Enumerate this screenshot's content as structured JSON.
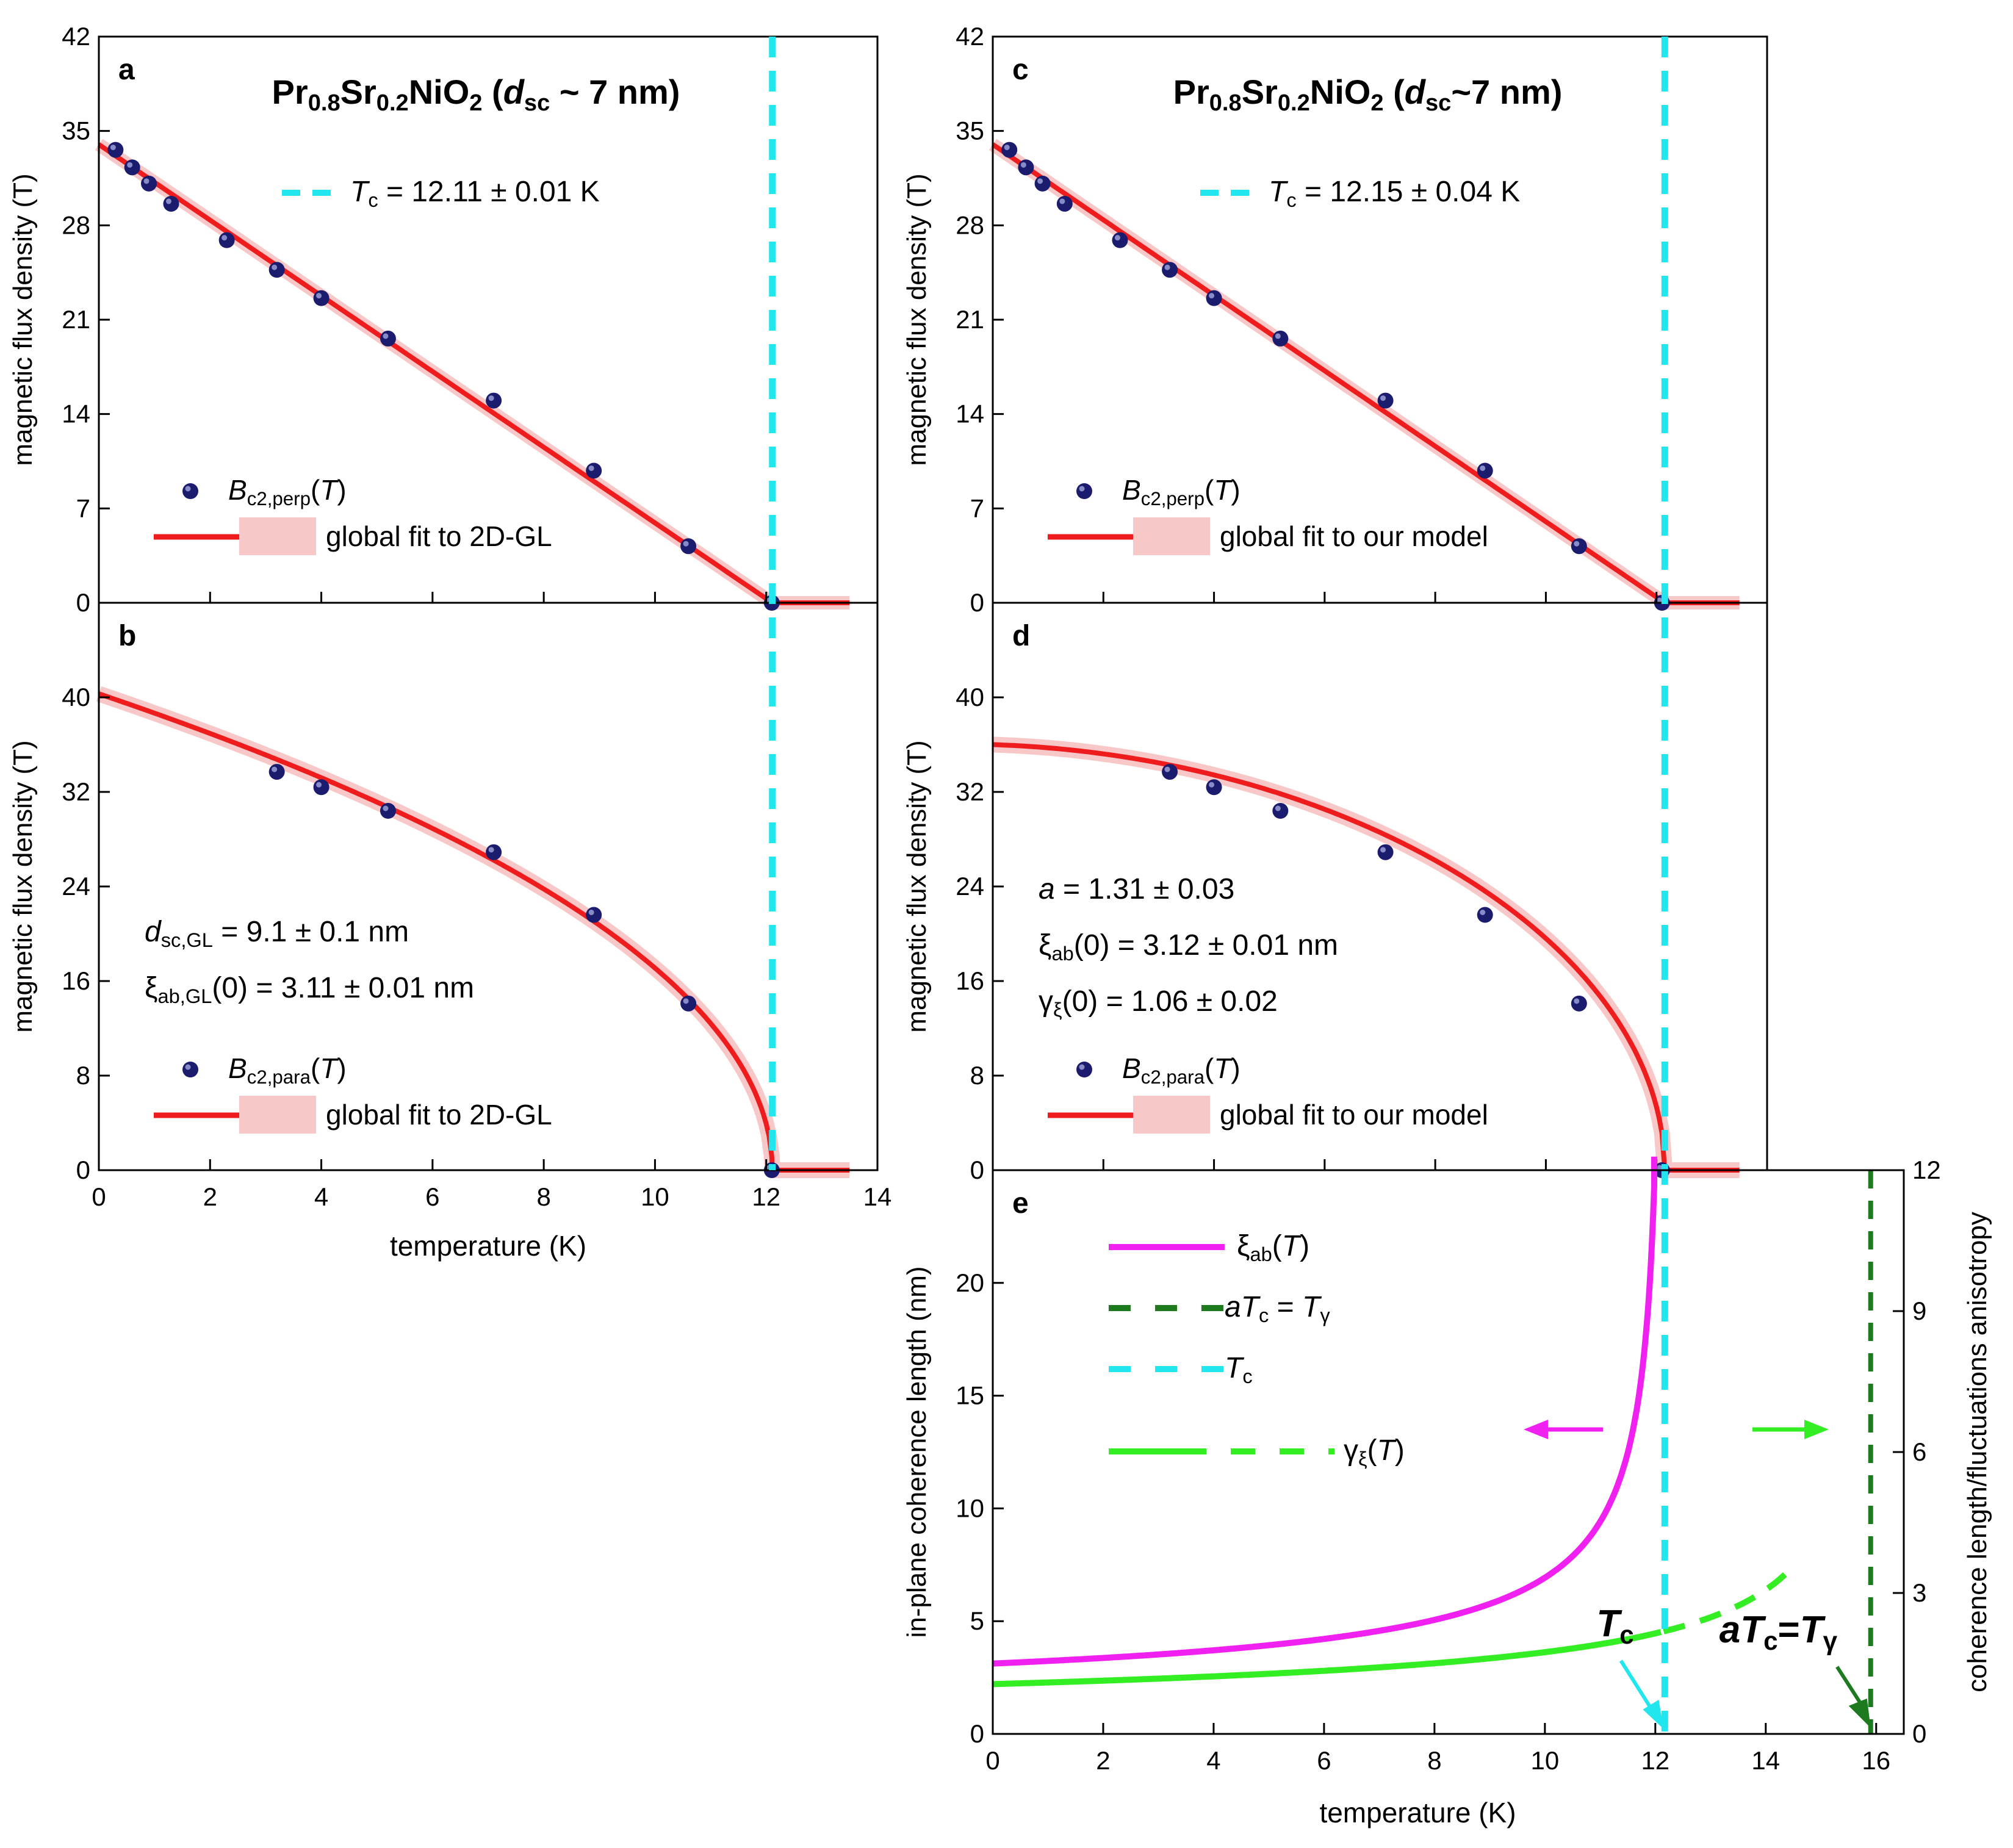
{
  "chart_data": [
    {
      "id": "a",
      "type": "scatter",
      "panel_label": "a",
      "title": "Pr0.8Sr0.2NiO2 (dsc ~ 7 nm)",
      "title_parts": [
        "Pr",
        "0.8",
        "Sr",
        "0.2",
        "NiO",
        "2",
        " (",
        "d",
        "sc",
        " ~ 7 nm)"
      ],
      "xlabel": "temperature (K)",
      "ylabel": "magnetic flux density (T)",
      "xlim": [
        0,
        14
      ],
      "ylim": [
        0,
        42
      ],
      "xticks": [
        "0",
        "2",
        "4",
        "6",
        "8",
        "10",
        "12",
        "14"
      ],
      "yticks": [
        "0",
        "7",
        "14",
        "21",
        "28",
        "35",
        "42"
      ],
      "annotation": [
        "T",
        "c",
        " = 12.11 ± 0.01 K"
      ],
      "legend": [
        [
          "B",
          "c2,perp",
          "(",
          "T",
          ")"
        ],
        "global fit to 2D-GL"
      ],
      "series": [
        {
          "name": "Bc2,perp(T)",
          "kind": "points",
          "x": [
            0.3,
            0.6,
            0.9,
            1.3,
            2.3,
            3.2,
            4.0,
            5.2,
            7.1,
            8.9,
            10.6,
            12.1
          ],
          "y": [
            33.6,
            32.3,
            31.1,
            29.6,
            26.9,
            24.7,
            22.6,
            19.6,
            15.0,
            9.8,
            4.2,
            0.0
          ]
        },
        {
          "name": "global fit to 2D-GL",
          "kind": "fit",
          "model": "perp",
          "x_end": 13.5
        },
        {
          "name": "Tc",
          "kind": "vline",
          "x": 12.11
        }
      ]
    },
    {
      "id": "b",
      "type": "scatter",
      "panel_label": "b",
      "xlabel": "temperature (K)",
      "ylabel": "magnetic flux density (T)",
      "xlim": [
        0,
        14
      ],
      "ylim": [
        0,
        48
      ],
      "xticks": [
        "0",
        "2",
        "4",
        "6",
        "8",
        "10",
        "12",
        "14"
      ],
      "yticks": [
        "0",
        "8",
        "16",
        "24",
        "32",
        "40"
      ],
      "params": [
        [
          "d",
          "sc,GL",
          " = 9.1 ± 0.1 nm"
        ],
        [
          "ξ",
          "ab,GL",
          "(0) = 3.11 ± 0.01 nm"
        ]
      ],
      "legend": [
        [
          "B",
          "c2,para",
          "(",
          "T",
          ")"
        ],
        "global fit to 2D-GL"
      ],
      "series": [
        {
          "name": "Bc2,para(T)",
          "kind": "points",
          "x": [
            3.2,
            4.0,
            5.2,
            7.1,
            8.9,
            10.6,
            12.1
          ],
          "y": [
            33.7,
            32.4,
            30.4,
            26.9,
            21.6,
            14.1,
            0.0
          ]
        },
        {
          "name": "global fit to 2D-GL",
          "kind": "fit",
          "model": "gl_para",
          "B0": 40.3,
          "Tc": 12.11,
          "x_end": 13.5
        },
        {
          "name": "Tc",
          "kind": "vline",
          "x": 12.11
        }
      ]
    },
    {
      "id": "c",
      "type": "scatter",
      "panel_label": "c",
      "title": "Pr0.8Sr0.2NiO2 (dsc~7 nm)",
      "title_parts": [
        "Pr",
        "0.8",
        "Sr",
        "0.2",
        "NiO",
        "2",
        " (",
        "d",
        "sc",
        "~7 nm)"
      ],
      "ylabel": "magnetic flux density (T)",
      "xlim": [
        0,
        14
      ],
      "ylim": [
        0,
        42
      ],
      "yticks": [
        "0",
        "7",
        "14",
        "21",
        "28",
        "35",
        "42"
      ],
      "annotation": [
        "T",
        "c",
        " = 12.15 ± 0.04 K"
      ],
      "legend": [
        [
          "B",
          "c2,perp",
          "(",
          "T",
          ")"
        ],
        "global fit to our model"
      ],
      "series": [
        {
          "name": "Bc2,perp(T)",
          "kind": "points",
          "x": [
            0.3,
            0.6,
            0.9,
            1.3,
            2.3,
            3.2,
            4.0,
            5.2,
            7.1,
            8.9,
            10.6,
            12.1
          ],
          "y": [
            33.6,
            32.3,
            31.1,
            29.6,
            26.9,
            24.7,
            22.6,
            19.6,
            15.0,
            9.8,
            4.2,
            0.0
          ]
        },
        {
          "name": "global fit to our model",
          "kind": "fit",
          "model": "perp",
          "x_end": 13.5
        },
        {
          "name": "Tc",
          "kind": "vline",
          "x": 12.15
        }
      ]
    },
    {
      "id": "d",
      "type": "scatter",
      "panel_label": "d",
      "ylabel": "magnetic flux density (T)",
      "xlim": [
        0,
        14
      ],
      "ylim": [
        0,
        48
      ],
      "yticks": [
        "0",
        "8",
        "16",
        "24",
        "32",
        "40"
      ],
      "params": [
        [
          "a",
          "",
          " = 1.31 ± 0.03"
        ],
        [
          "ξ",
          "ab",
          "(0) = 3.12 ±  0.01 nm"
        ],
        [
          "γ",
          "ξ",
          "(0) = 1.06 ± 0.02"
        ]
      ],
      "legend": [
        [
          "B",
          "c2,para",
          "(",
          "T",
          ")"
        ],
        "global fit to our model"
      ],
      "series": [
        {
          "name": "Bc2,para(T)",
          "kind": "points",
          "x": [
            3.2,
            4.0,
            5.2,
            7.1,
            8.9,
            10.6,
            12.1
          ],
          "y": [
            33.7,
            32.4,
            30.4,
            26.9,
            21.6,
            14.1,
            0.0
          ]
        },
        {
          "name": "global fit to our model",
          "kind": "fit",
          "model": "model_para",
          "B0": 36.0,
          "Tc": 12.15,
          "x_end": 13.5
        },
        {
          "name": "Tc",
          "kind": "vline",
          "x": 12.15
        }
      ]
    },
    {
      "id": "e",
      "type": "line",
      "panel_label": "e",
      "xlabel": "temperature (K)",
      "ylabel": "in-plane coherence length (nm)",
      "y2label": "coherence length/fluctuations anisotropy",
      "xlim": [
        0,
        16.5
      ],
      "ylim": [
        0,
        25
      ],
      "y2lim": [
        0,
        12
      ],
      "xticks": [
        "0",
        "2",
        "4",
        "6",
        "8",
        "10",
        "12",
        "14",
        "16"
      ],
      "yticks": [
        "0",
        "5",
        "10",
        "15",
        "20"
      ],
      "y2ticks": [
        "0",
        "3",
        "6",
        "9",
        "12"
      ],
      "legend": [
        [
          "ξ",
          "ab",
          "(",
          "T",
          ")"
        ],
        [
          "a",
          "T",
          "c",
          " = ",
          "T",
          "γ"
        ],
        [
          "T",
          "c"
        ],
        [
          "γ",
          "ξ",
          "(",
          "T",
          ")"
        ]
      ],
      "tc_label": [
        "T",
        "c"
      ],
      "atc_label": [
        "a",
        "T",
        "c",
        "=",
        "T",
        "γ"
      ],
      "series": [
        {
          "name": "ξab(T)",
          "axis": "left",
          "xi0": 3.12,
          "Tc": 12.15
        },
        {
          "name": "γξ(T)",
          "axis": "right",
          "g0": 1.06,
          "Tgamma": 15.9,
          "dashed_from": 12.15,
          "x_end": 14.4
        },
        {
          "name": "Tc",
          "kind": "vline",
          "x": 12.15
        },
        {
          "name": "aTc = Tγ",
          "kind": "vline",
          "x": 15.9
        }
      ]
    }
  ],
  "colors": {
    "points": "#1c1c6e",
    "fit": "#ee1c1c",
    "band": "#f8c8c8",
    "tc": "#22e6ee",
    "xi": "#f020f0",
    "gamma": "#33ee22",
    "atc": "#1e7a1e"
  }
}
